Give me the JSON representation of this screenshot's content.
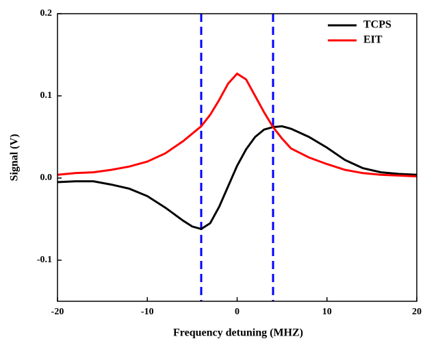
{
  "chart_data": {
    "type": "line",
    "x_label": "Frequency detuning (MHZ)",
    "y_label": "Signal (V)",
    "x": [
      -20,
      -18,
      -16,
      -14,
      -12,
      -10,
      -8,
      -6,
      -5,
      -4,
      -3,
      -2,
      -1,
      0,
      1,
      2,
      3,
      4,
      5,
      6,
      8,
      10,
      12,
      14,
      16,
      18,
      20
    ],
    "series": [
      {
        "name": "TCPS",
        "color": "#000000",
        "values": [
          -0.005,
          -0.004,
          -0.004,
          -0.008,
          -0.013,
          -0.022,
          -0.036,
          -0.052,
          -0.059,
          -0.062,
          -0.055,
          -0.035,
          -0.01,
          0.015,
          0.035,
          0.05,
          0.059,
          0.062,
          0.063,
          0.06,
          0.05,
          0.037,
          0.022,
          0.012,
          0.007,
          0.005,
          0.004
        ]
      },
      {
        "name": "EIT",
        "color": "#ff0000",
        "values": [
          0.004,
          0.006,
          0.007,
          0.01,
          0.014,
          0.02,
          0.03,
          0.045,
          0.054,
          0.063,
          0.077,
          0.095,
          0.115,
          0.127,
          0.12,
          0.1,
          0.08,
          0.062,
          0.048,
          0.036,
          0.025,
          0.017,
          0.01,
          0.006,
          0.004,
          0.003,
          0.002
        ]
      }
    ],
    "vlines": [
      -4,
      4
    ],
    "vline_color": "#0000ff",
    "xlim": [
      -20,
      20
    ],
    "xticks": [
      -20,
      -10,
      0,
      10,
      20
    ],
    "ylim": [
      -0.15,
      0.2
    ],
    "yticks": [
      -0.1,
      {
        "value": 0,
        "label": "0.0"
      },
      0.1,
      0.2
    ],
    "legend": "top-right"
  }
}
